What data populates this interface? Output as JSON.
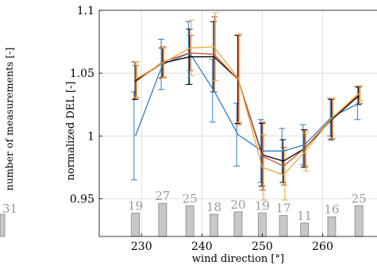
{
  "chart_data": [
    {
      "type": "bar",
      "visibility": "partially cropped on the left edge",
      "ylabel": "number of measurements [-]",
      "visible_bar_labels": [
        "31"
      ]
    },
    {
      "type": "line",
      "ylabel": "normalized DEL [-]",
      "xlabel": "wind direction [°]",
      "xlim": [
        223,
        269
      ],
      "ylim": [
        0.92,
        1.1
      ],
      "xticks": [
        230,
        240,
        250,
        260
      ],
      "yticks": [
        0.95,
        1,
        1.05,
        1.1
      ],
      "ytick_labels": [
        "0.95",
        "1",
        "1.05",
        "1.1"
      ],
      "grid": true,
      "x": [
        229,
        233.5,
        238,
        242,
        246,
        250,
        253.5,
        257,
        261.5,
        266
      ],
      "series": [
        {
          "color": "#2f7fc1",
          "values": [
            1.0,
            1.057,
            1.066,
            1.036,
            1.001,
            0.988,
            0.988,
            0.993,
            1.015,
            1.026
          ],
          "errors": [
            0.035,
            0.02,
            0.025,
            0.025,
            0.025,
            0.025,
            0.018,
            0.016,
            0.015,
            0.013
          ]
        },
        {
          "color": "#000000",
          "values": [
            1.044,
            1.058,
            1.063,
            1.063,
            1.045,
            0.985,
            0.98,
            0.99,
            1.013,
            1.032
          ],
          "errors": [
            0.015,
            0.012,
            0.022,
            0.028,
            0.035,
            0.025,
            0.017,
            0.015,
            0.016,
            0.007
          ]
        },
        {
          "color": "#c8502a",
          "values": [
            1.043,
            1.059,
            1.066,
            1.065,
            1.045,
            0.984,
            0.976,
            0.99,
            1.014,
            1.033
          ],
          "errors": [
            0.013,
            0.012,
            0.014,
            0.03,
            0.036,
            0.027,
            0.015,
            0.014,
            0.016,
            0.007
          ]
        },
        {
          "color": "#e8a93a",
          "values": [
            1.045,
            1.058,
            1.07,
            1.071,
            1.046,
            0.975,
            0.969,
            0.987,
            1.014,
            1.034
          ],
          "errors": [
            0.014,
            0.012,
            0.022,
            0.027,
            0.035,
            0.026,
            0.02,
            0.015,
            0.016,
            0.006
          ]
        }
      ],
      "count_bars": {
        "axis_note": "secondary axis for number of measurements",
        "values": [
          19,
          27,
          25,
          18,
          20,
          19,
          17,
          11,
          16,
          25
        ],
        "bar_color": "#c8c8c8",
        "label_color": "#9a9a9a"
      }
    }
  ]
}
